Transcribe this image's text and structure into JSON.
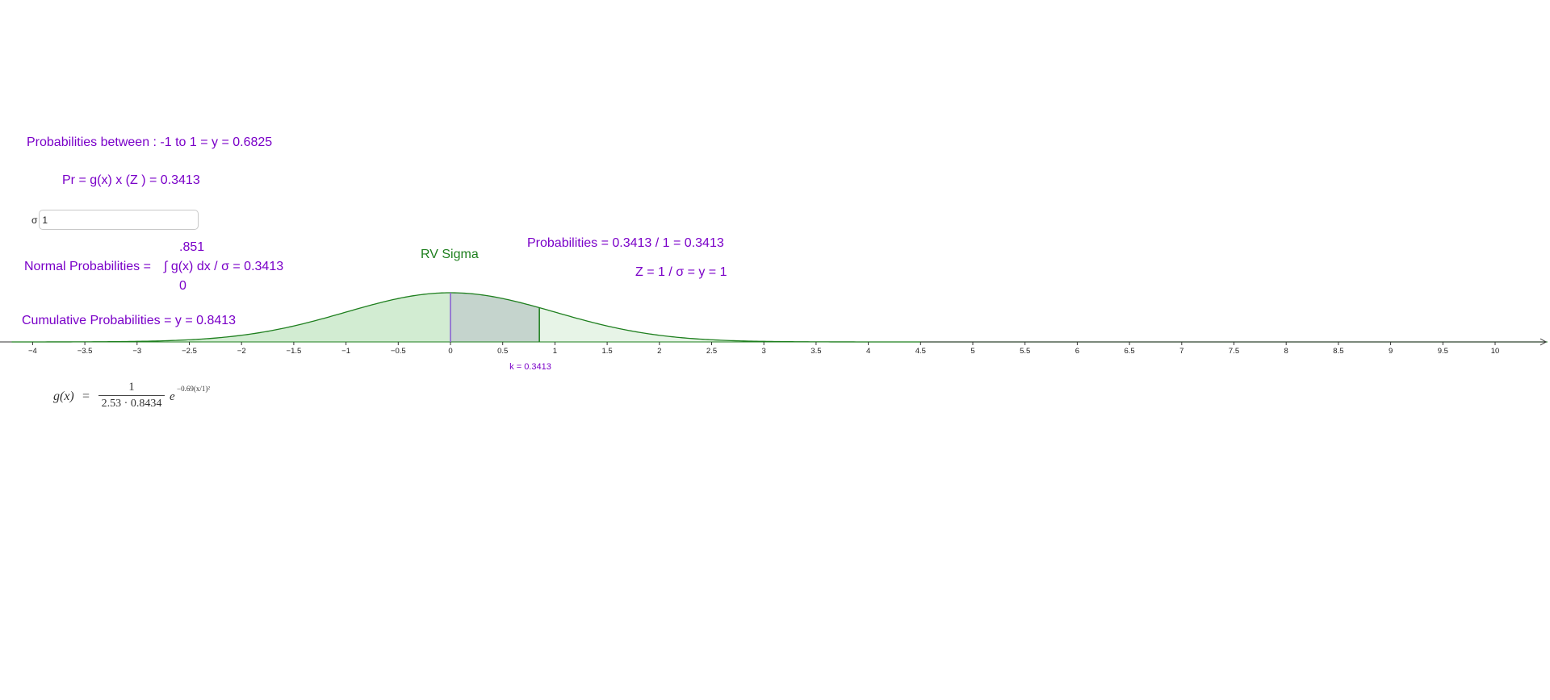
{
  "texts": {
    "probabilities_between": "Probabilities between : -1 to 1 = y = 0.6825",
    "pr_formula": "Pr =  g(x)  x  (Z ) = 0.3413",
    "upper_limit": ".851",
    "normal_probabilities_label": "Normal Probabilities =",
    "integral_expression": "∫ g(x) dx / σ = 0.3413",
    "lower_limit": "0",
    "cumulative_probabilities": "Cumulative Probabilities = y = 0.8413",
    "rv_sigma": "RV Sigma",
    "probabilities_ratio": "Probabilities = 0.3413 / 1 = 0.3413",
    "z_value": "Z = 1 / σ = y = 1",
    "k_label": "k = 0.3413"
  },
  "sigma_input": {
    "label": "σ",
    "value": "1"
  },
  "formula": {
    "lhs": "g(x)",
    "equals": "=",
    "numerator": "1",
    "denominator": "2.53 · 0.8434",
    "base": "e",
    "exponent": "−0.69(x/1)²"
  },
  "colors": {
    "text_purple": "#7a00c8",
    "curve_green": "#1e7f1e",
    "fill_light_green": "#d2ecd2",
    "fill_shaded_gray": "#c5d4cd",
    "marker_purple": "#8a63d2",
    "axis": "#333333"
  },
  "chart_data": {
    "type": "area",
    "title": "RV Sigma",
    "xlabel": "",
    "ylabel": "",
    "xlim": [
      -4.2,
      10.5
    ],
    "x_ticks": [
      -4,
      -3.5,
      -3,
      -2.5,
      -2,
      -1.5,
      -1,
      -0.5,
      0,
      0.5,
      1,
      1.5,
      2,
      2.5,
      3,
      3.5,
      4,
      4.5,
      5,
      5.5,
      6,
      6.5,
      7,
      7.5,
      8,
      8.5,
      9,
      9.5,
      10
    ],
    "x_tick_labels": [
      "−4",
      "−3.5",
      "−3",
      "−2.5",
      "−2",
      "−1.5",
      "−1",
      "−0.5",
      "0",
      "0.5",
      "1",
      "1.5",
      "2",
      "2.5",
      "3",
      "3.5",
      "4",
      "4.5",
      "5",
      "5.5",
      "6",
      "6.5",
      "7",
      "7.5",
      "8",
      "8.5",
      "9",
      "9.5",
      "10"
    ],
    "curve": {
      "function": "normal_pdf",
      "mean": 0,
      "sigma": 1,
      "peak_y": 0.3989
    },
    "shaded_region": {
      "from": 0,
      "to": 0.851,
      "area": 0.3413
    },
    "markers": [
      {
        "x": 0,
        "y": 0.3989
      },
      {
        "x": 0.851,
        "y": 0.2778
      }
    ],
    "grid": false,
    "legend": "none"
  }
}
